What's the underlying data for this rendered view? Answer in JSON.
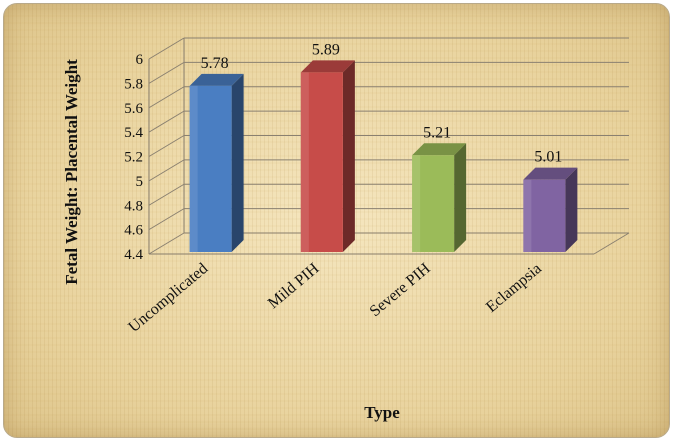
{
  "chart_data": {
    "type": "bar",
    "categories": [
      "Uncomplicated",
      "Mild PIH",
      "Severe PIH",
      "Eclampsia"
    ],
    "values": [
      5.78,
      5.89,
      5.21,
      5.01
    ],
    "value_labels": [
      "5.78",
      "5.89",
      "5.21",
      "5.01"
    ],
    "ylabel": "Fetal Weight: Placental Weight",
    "xlabel": "Type",
    "ylim": [
      4.4,
      6
    ],
    "yticks": [
      "4.4",
      "4.6",
      "4.8",
      "5",
      "5.2",
      "5.4",
      "5.6",
      "5.8",
      "6"
    ],
    "grid": true,
    "style": "3d",
    "colors": [
      "#4a7ec2",
      "#c74c49",
      "#9bbb59",
      "#8064a2"
    ]
  }
}
